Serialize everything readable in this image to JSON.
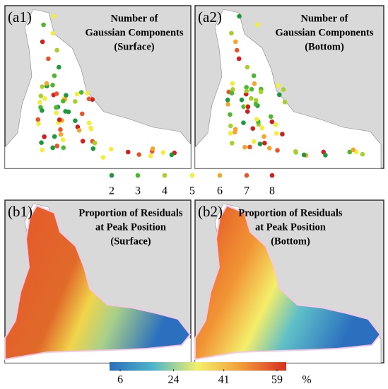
{
  "panels": [
    {
      "label": "(a1)",
      "title": [
        "Number of",
        "Gaussian Components",
        "(Surface)"
      ]
    },
    {
      "label": "(a2)",
      "title": [
        "Number of",
        "Gaussian Components",
        "(Bottom)"
      ]
    },
    {
      "label": "(b1)",
      "title": [
        "Proportion of Residuals",
        "at Peak Position",
        "(Surface)"
      ]
    },
    {
      "label": "(b2)",
      "title": [
        "Proportion of Residuals",
        "at Peak Position",
        "(Bottom)"
      ]
    }
  ],
  "legend": {
    "values": [
      2,
      3,
      4,
      5,
      6,
      7,
      8
    ],
    "colors": [
      "#1a9a3a",
      "#4cb82f",
      "#a6d02a",
      "#f2ee3a",
      "#f3a62a",
      "#e8552a",
      "#d01f1f"
    ]
  },
  "colorbar": {
    "ticks": [
      6,
      24,
      41,
      59
    ],
    "lim": [
      2.4,
      62.1
    ],
    "unit": "%",
    "colors": [
      "#2b6fbf",
      "#4fb6c9",
      "#f4f06a",
      "#f29a3a",
      "#d7301f"
    ]
  }
}
